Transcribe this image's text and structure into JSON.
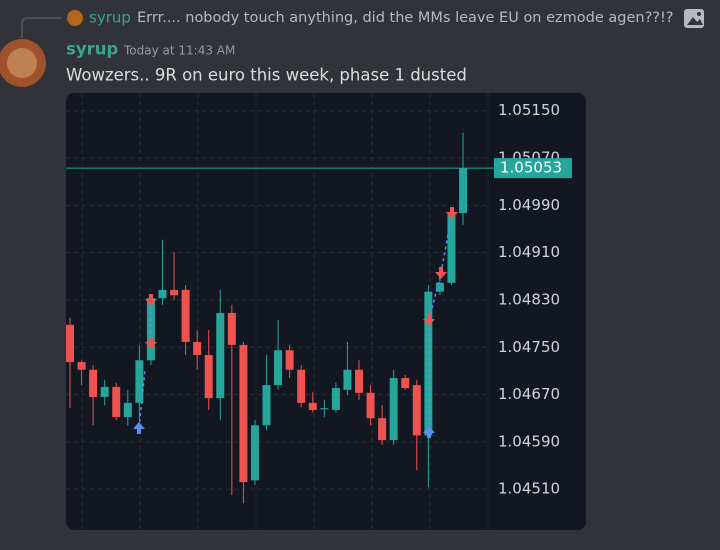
{
  "reply": {
    "author": "syrup",
    "text": "Errr.... nobody touch anything, did the MMs leave EU on ezmode agen??!?"
  },
  "message": {
    "author": "syrup",
    "timestamp": "Today at 11:43 AM",
    "text": "Wowzers.. 9R on euro this week, phase 1 dusted"
  },
  "chart_data": {
    "type": "candlestick",
    "up_color": "#26a69a",
    "down_color": "#ef5350",
    "grid": true,
    "ylim": [
      1.04441,
      1.0518
    ],
    "yticks": [
      {
        "value": 1.0451,
        "label": "1.04510"
      },
      {
        "value": 1.0459,
        "label": "1.04590"
      },
      {
        "value": 1.0467,
        "label": "1.04670"
      },
      {
        "value": 1.0475,
        "label": "1.04750"
      },
      {
        "value": 1.0483,
        "label": "1.04830"
      },
      {
        "value": 1.0491,
        "label": "1.04910"
      },
      {
        "value": 1.0499,
        "label": "1.04990"
      },
      {
        "value": 1.0507,
        "label": "1.05070"
      },
      {
        "value": 1.0515,
        "label": "1.05150"
      }
    ],
    "last_price": {
      "value": 1.05053,
      "label": "1.05053"
    },
    "open": [
      1.04788,
      1.04725,
      1.04712,
      1.04666,
      1.04683,
      1.04632,
      1.04656,
      1.04728,
      1.04833,
      1.04847,
      1.04847,
      1.04759,
      1.04737,
      1.04664,
      1.04808,
      1.04754,
      1.04525,
      1.04618,
      1.04686,
      1.04745,
      1.04712,
      1.04656,
      1.04645,
      1.04644,
      1.04678,
      1.04712,
      1.04673,
      1.0463,
      1.04593,
      1.04698,
      1.04686,
      1.04601,
      1.04844,
      1.04859,
      1.04977
    ],
    "high": [
      1.048,
      1.04728,
      1.0472,
      1.04695,
      1.0469,
      1.04678,
      1.04754,
      1.04838,
      1.04932,
      1.04911,
      1.04855,
      1.04779,
      1.04779,
      1.04847,
      1.04822,
      1.04759,
      1.04627,
      1.04737,
      1.04796,
      1.04754,
      1.0472,
      1.04674,
      1.04661,
      1.0469,
      1.04759,
      1.04728,
      1.04686,
      1.04652,
      1.04712,
      1.04703,
      1.04695,
      1.04855,
      1.04881,
      1.04982,
      1.05113
    ],
    "low": [
      1.04647,
      1.04686,
      1.04618,
      1.04652,
      1.04627,
      1.04618,
      1.04627,
      1.0472,
      1.04822,
      1.0483,
      1.04737,
      1.04712,
      1.04644,
      1.04627,
      1.045,
      1.04486,
      1.04517,
      1.0461,
      1.04678,
      1.04698,
      1.04649,
      1.0464,
      1.04632,
      1.0464,
      1.04669,
      1.04661,
      1.04618,
      1.04585,
      1.04585,
      1.04678,
      1.04542,
      1.04513,
      1.04838,
      1.04855,
      1.04957
    ],
    "close": [
      1.04725,
      1.04712,
      1.04666,
      1.04683,
      1.04632,
      1.04656,
      1.04728,
      1.04833,
      1.04847,
      1.04838,
      1.04759,
      1.04737,
      1.04664,
      1.04808,
      1.04754,
      1.04522,
      1.04618,
      1.04686,
      1.04745,
      1.04712,
      1.04656,
      1.04644,
      1.04647,
      1.04681,
      1.04712,
      1.04673,
      1.0463,
      1.04593,
      1.04698,
      1.04681,
      1.04601,
      1.04844,
      1.04859,
      1.04977,
      1.05053
    ]
  }
}
